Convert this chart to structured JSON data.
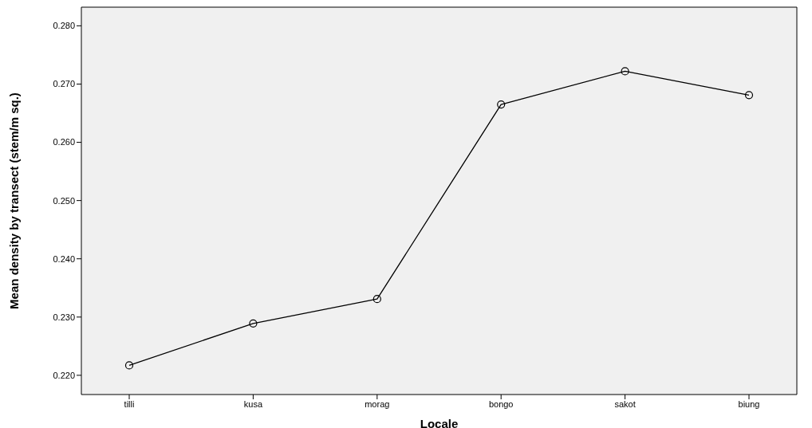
{
  "chart_data": {
    "type": "line",
    "xlabel": "Locale",
    "ylabel": "Mean density by transect (stem/m sq.)",
    "categories": [
      "tilli",
      "kusa",
      "morag",
      "bongo",
      "sakot",
      "biung"
    ],
    "values": [
      0.2217,
      0.2289,
      0.2331,
      0.2665,
      0.2722,
      0.2681
    ],
    "color": "#000000",
    "marker": "circle",
    "line_style": "solid",
    "grid": false,
    "legend": false,
    "ylim": [
      0.2167,
      0.2832
    ],
    "yticks": [
      {
        "value": 0.22,
        "label": "0.220"
      },
      {
        "value": 0.23,
        "label": "0.230"
      },
      {
        "value": 0.24,
        "label": "0.240"
      },
      {
        "value": 0.25,
        "label": "0.250"
      },
      {
        "value": 0.26,
        "label": "0.260"
      },
      {
        "value": 0.27,
        "label": "0.270"
      },
      {
        "value": 0.28,
        "label": "0.280"
      }
    ]
  }
}
